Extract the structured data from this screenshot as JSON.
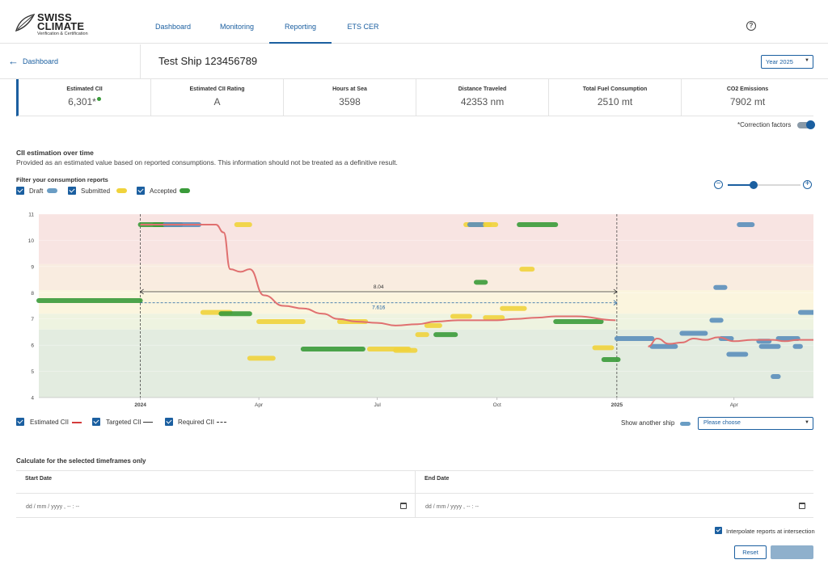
{
  "brand": {
    "name_line1": "SWISS",
    "name_line2": "CLIMATE",
    "tagline": "Verification & Certification"
  },
  "nav": {
    "tabs": [
      "Dashboard",
      "Monitoring",
      "Reporting",
      "ETS CER"
    ],
    "active": "Reporting"
  },
  "header": {
    "back_label": "Dashboard",
    "ship_title": "Test Ship 123456789",
    "year_select": "Year 2025"
  },
  "stats": [
    {
      "label": "Estimated CII",
      "value": "6,301",
      "suffix": "*"
    },
    {
      "label": "Estimated CII Rating",
      "value": "A"
    },
    {
      "label": "Hours at Sea",
      "value": "3598"
    },
    {
      "label": "Distance Traveled",
      "value": "42353 nm"
    },
    {
      "label": "Total Fuel Consumption",
      "value": "2510 mt"
    },
    {
      "label": "CO2 Emissions",
      "value": "7902 mt"
    }
  ],
  "correction_factors": {
    "label": "*Correction factors",
    "on": true
  },
  "section": {
    "title": "CII estimation over time",
    "description": "Provided as an estimated value based on reported consumptions. This information should not be treated as a definitive result."
  },
  "filters": {
    "title": "Filter your consumption reports",
    "items": [
      {
        "label": "Draft",
        "checked": true,
        "color": "#6a9dc4"
      },
      {
        "label": "Submitted",
        "checked": true,
        "color": "#f0d33c"
      },
      {
        "label": "Accepted",
        "checked": true,
        "color": "#3a9b3a"
      }
    ]
  },
  "zoom": {
    "level": 0.35
  },
  "colors": {
    "draft": "#5b8fbb",
    "submitted": "#f0d33c",
    "accepted": "#3a9b3a",
    "estimated": "#e07070",
    "band_e": "#f8e4e2",
    "band_d": "#f9ece0",
    "band_c": "#fbf5de",
    "band_b": "#eef3e0",
    "band_a": "#e3ece0"
  },
  "chart_data": {
    "type": "line",
    "ylim": [
      4,
      11
    ],
    "yticks": [
      "4",
      "5",
      "6",
      "7",
      "8",
      "9",
      "10",
      "11"
    ],
    "xticks": [
      "2024",
      "Apr",
      "Jul",
      "Oct",
      "2025",
      "Apr"
    ],
    "year_markers": [
      "2024",
      "2025"
    ],
    "targeted": {
      "value": 8.04,
      "label": "8.04"
    },
    "required": {
      "value": 7.616,
      "label": "7.616"
    },
    "rating_bands": [
      {
        "from": 4.0,
        "to": 6.6,
        "key": "band_a"
      },
      {
        "from": 6.6,
        "to": 7.2,
        "key": "band_b"
      },
      {
        "from": 7.2,
        "to": 8.1,
        "key": "band_c"
      },
      {
        "from": 8.1,
        "to": 9.1,
        "key": "band_d"
      },
      {
        "from": 9.1,
        "to": 11.0,
        "key": "band_e"
      }
    ],
    "estimated_cii": {
      "x": [
        "2024-01-01",
        "2024-02-28",
        "2024-03-05",
        "2024-03-10",
        "2024-03-18",
        "2024-03-25",
        "2024-04-05",
        "2024-04-20",
        "2024-05-05",
        "2024-05-20",
        "2024-06-01",
        "2024-06-15",
        "2024-07-01",
        "2024-07-15",
        "2024-08-01",
        "2024-08-15",
        "2024-09-01",
        "2024-09-15",
        "2024-10-01",
        "2024-10-15",
        "2024-11-01",
        "2024-11-15",
        "2024-12-01",
        "2024-12-31"
      ],
      "y": [
        10.6,
        10.6,
        10.3,
        8.9,
        8.8,
        8.9,
        7.9,
        7.5,
        7.4,
        7.2,
        7.0,
        6.9,
        6.85,
        6.75,
        6.8,
        6.9,
        6.95,
        6.95,
        6.95,
        7.0,
        7.05,
        7.1,
        7.1,
        6.95
      ]
    },
    "estimated_cii_2025": {
      "x": [
        "2025-01-25",
        "2025-02-01",
        "2025-02-10",
        "2025-02-20",
        "2025-03-01",
        "2025-03-10",
        "2025-03-20",
        "2025-04-01",
        "2025-04-15",
        "2025-05-01",
        "2025-05-10",
        "2025-05-20",
        "2025-06-01"
      ],
      "y": [
        5.95,
        6.25,
        6.05,
        6.1,
        6.25,
        6.2,
        6.3,
        6.15,
        6.2,
        6.2,
        6.15,
        6.2,
        6.2
      ]
    },
    "reports": [
      {
        "status": "accepted",
        "start": "2023-10-15",
        "end": "2024-01-01",
        "value": 7.7
      },
      {
        "status": "accepted",
        "start": "2024-01-01",
        "end": "2024-01-20",
        "value": 10.6
      },
      {
        "status": "accepted",
        "start": "2024-01-12",
        "end": "2024-02-01",
        "value": 10.6
      },
      {
        "status": "draft",
        "start": "2024-01-20",
        "end": "2024-02-15",
        "value": 10.6
      },
      {
        "status": "submitted",
        "start": "2024-03-15",
        "end": "2024-03-25",
        "value": 10.6
      },
      {
        "status": "submitted",
        "start": "2024-02-18",
        "end": "2024-03-10",
        "value": 7.25
      },
      {
        "status": "accepted",
        "start": "2024-03-03",
        "end": "2024-03-25",
        "value": 7.2
      },
      {
        "status": "submitted",
        "start": "2024-03-25",
        "end": "2024-04-12",
        "value": 5.5
      },
      {
        "status": "submitted",
        "start": "2024-04-01",
        "end": "2024-05-05",
        "value": 6.9
      },
      {
        "status": "accepted",
        "start": "2024-05-05",
        "end": "2024-06-20",
        "value": 5.85
      },
      {
        "status": "submitted",
        "start": "2024-06-02",
        "end": "2024-06-22",
        "value": 6.9
      },
      {
        "status": "submitted",
        "start": "2024-06-25",
        "end": "2024-07-25",
        "value": 5.85
      },
      {
        "status": "submitted",
        "start": "2024-07-15",
        "end": "2024-07-30",
        "value": 5.8
      },
      {
        "status": "submitted",
        "start": "2024-08-01",
        "end": "2024-08-08",
        "value": 6.4
      },
      {
        "status": "submitted",
        "start": "2024-08-08",
        "end": "2024-08-18",
        "value": 6.75
      },
      {
        "status": "accepted",
        "start": "2024-08-15",
        "end": "2024-08-30",
        "value": 6.4
      },
      {
        "status": "submitted",
        "start": "2024-08-28",
        "end": "2024-09-10",
        "value": 7.1
      },
      {
        "status": "submitted",
        "start": "2024-09-07",
        "end": "2024-09-25",
        "value": 10.6
      },
      {
        "status": "draft",
        "start": "2024-09-10",
        "end": "2024-09-20",
        "value": 10.6
      },
      {
        "status": "submitted",
        "start": "2024-09-22",
        "end": "2024-09-30",
        "value": 10.6
      },
      {
        "status": "accepted",
        "start": "2024-09-15",
        "end": "2024-09-22",
        "value": 8.4
      },
      {
        "status": "submitted",
        "start": "2024-09-22",
        "end": "2024-10-05",
        "value": 7.05
      },
      {
        "status": "submitted",
        "start": "2024-10-05",
        "end": "2024-10-22",
        "value": 7.4
      },
      {
        "status": "submitted",
        "start": "2024-10-20",
        "end": "2024-10-28",
        "value": 8.9
      },
      {
        "status": "accepted",
        "start": "2024-10-18",
        "end": "2024-11-15",
        "value": 10.6
      },
      {
        "status": "accepted",
        "start": "2024-11-15",
        "end": "2024-12-20",
        "value": 6.9
      },
      {
        "status": "submitted",
        "start": "2024-12-15",
        "end": "2024-12-28",
        "value": 5.9
      },
      {
        "status": "accepted",
        "start": "2024-12-22",
        "end": "2025-01-02",
        "value": 5.45
      },
      {
        "status": "draft",
        "start": "2025-01-01",
        "end": "2025-01-28",
        "value": 6.25
      },
      {
        "status": "draft",
        "start": "2025-01-28",
        "end": "2025-02-15",
        "value": 5.95
      },
      {
        "status": "draft",
        "start": "2025-02-20",
        "end": "2025-03-10",
        "value": 6.45
      },
      {
        "status": "draft",
        "start": "2025-03-15",
        "end": "2025-03-22",
        "value": 6.95
      },
      {
        "status": "draft",
        "start": "2025-03-18",
        "end": "2025-03-25",
        "value": 8.2
      },
      {
        "status": "draft",
        "start": "2025-03-22",
        "end": "2025-03-30",
        "value": 6.25
      },
      {
        "status": "draft",
        "start": "2025-03-28",
        "end": "2025-04-10",
        "value": 5.65
      },
      {
        "status": "draft",
        "start": "2025-04-05",
        "end": "2025-04-15",
        "value": 10.6
      },
      {
        "status": "draft",
        "start": "2025-04-20",
        "end": "2025-04-28",
        "value": 6.15
      },
      {
        "status": "draft",
        "start": "2025-04-22",
        "end": "2025-05-05",
        "value": 5.95
      },
      {
        "status": "draft",
        "start": "2025-05-01",
        "end": "2025-05-05",
        "value": 4.8
      },
      {
        "status": "draft",
        "start": "2025-05-05",
        "end": "2025-05-20",
        "value": 6.25
      },
      {
        "status": "draft",
        "start": "2025-05-18",
        "end": "2025-05-22",
        "value": 5.95
      },
      {
        "status": "draft",
        "start": "2025-05-22",
        "end": "2025-06-01",
        "value": 7.25
      }
    ]
  },
  "legend": {
    "items": [
      {
        "label": "Estimated CII",
        "checked": true
      },
      {
        "label": "Targeted CII",
        "checked": true
      },
      {
        "label": "Required CII",
        "checked": true
      }
    ],
    "show_another": {
      "label": "Show another ship",
      "placeholder": "Please choose"
    }
  },
  "calc": {
    "title": "Calculate for the selected timeframes only",
    "start_label": "Start Date",
    "end_label": "End Date",
    "date_placeholder": "dd / mm / yyyy ,  -- : --",
    "interpolate_label": "Interpolate reports at intersection",
    "interpolate_checked": true,
    "reset_label": "Reset"
  }
}
